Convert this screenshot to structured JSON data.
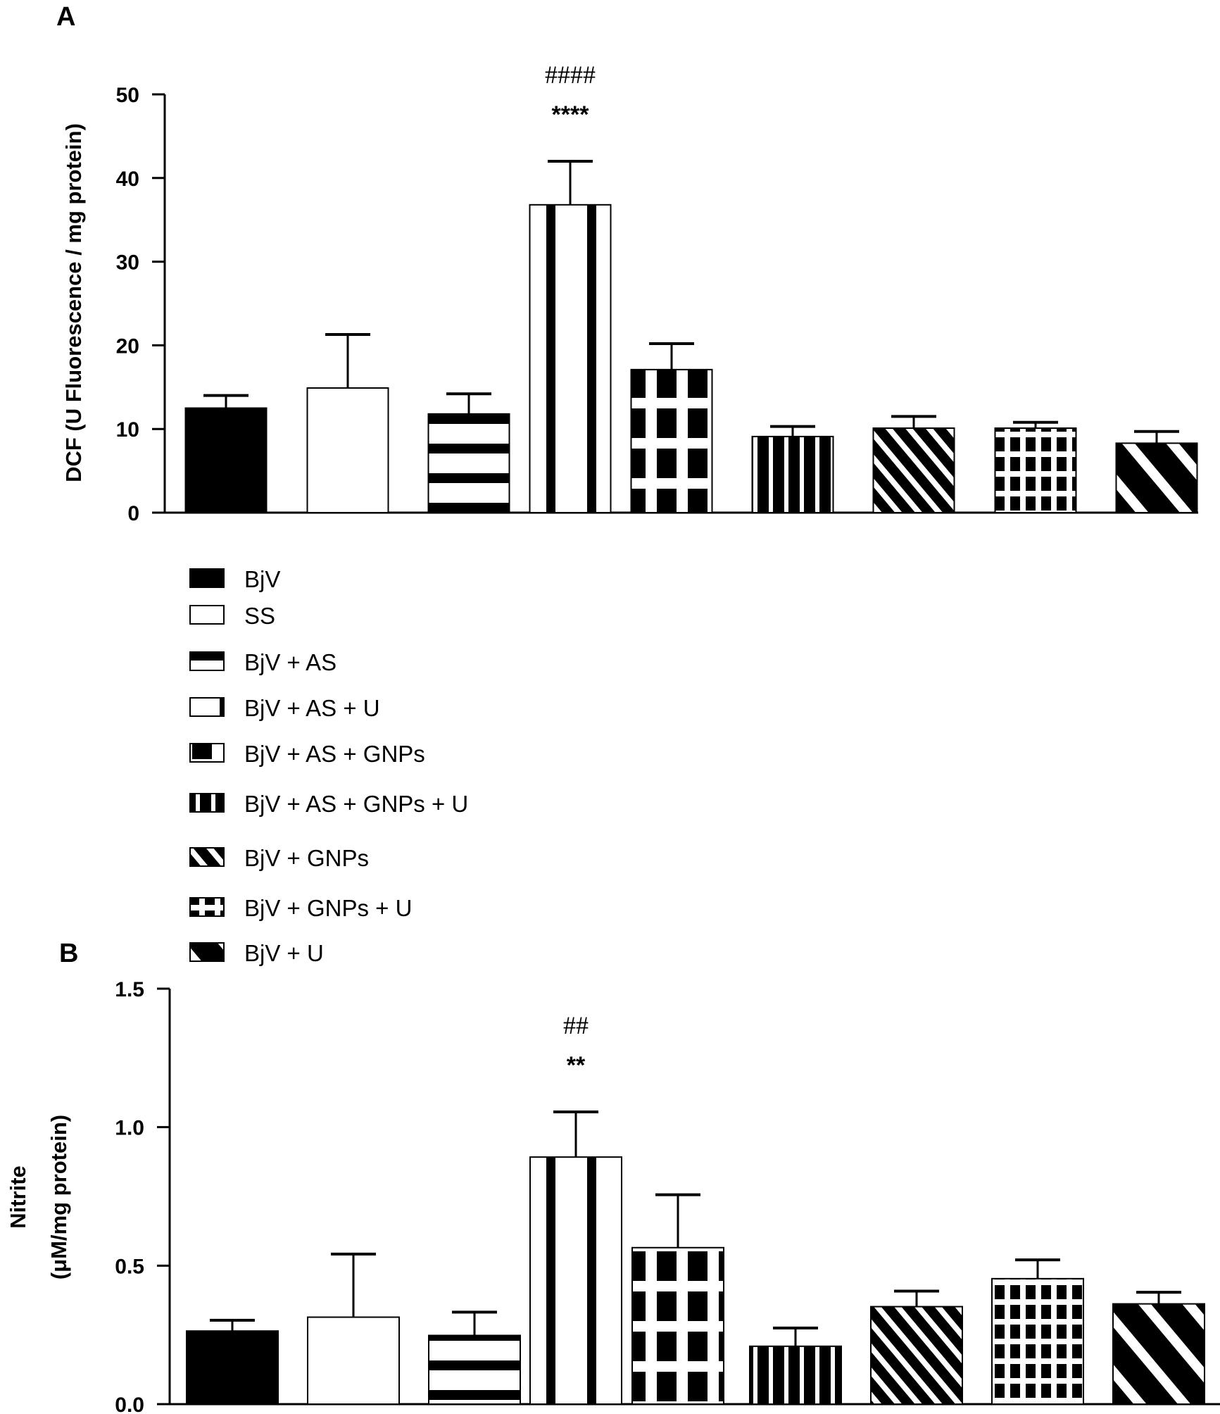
{
  "figure": {
    "legend": {
      "placement": "between-panels-left",
      "items": [
        {
          "label": "BjV",
          "pattern": "solid-black"
        },
        {
          "label": "SS",
          "pattern": "solid-white"
        },
        {
          "label": "BjV + AS",
          "pattern": "horizontal-stripes"
        },
        {
          "label": "BjV + AS + U",
          "pattern": "vertical-stripes-wide"
        },
        {
          "label": "BjV + AS + GNPs",
          "pattern": "grid-large"
        },
        {
          "label": "BjV + AS + GNPs + U",
          "pattern": "vertical-stripes-dense"
        },
        {
          "label": "BjV + GNPs",
          "pattern": "diagonal-fine"
        },
        {
          "label": "BjV + GNPs + U",
          "pattern": "grid-small"
        },
        {
          "label": "BjV + U",
          "pattern": "diagonal-wide"
        }
      ]
    }
  },
  "chart_data": [
    {
      "panel": "A",
      "type": "bar",
      "title": "",
      "xlabel": "",
      "ylabel": "DCF  (U Fluorescence / mg protein)",
      "ylim": [
        0,
        50
      ],
      "yticks": [
        "0",
        "10",
        "20",
        "30",
        "40",
        "50"
      ],
      "ytick_values": [
        0,
        10,
        20,
        30,
        40,
        50
      ],
      "grid": false,
      "categories": [
        "BjV",
        "SS",
        "BjV + AS",
        "BjV + AS + U",
        "BjV + AS + GNPs",
        "BjV + AS + GNPs + U",
        "BjV + GNPs",
        "BjV + GNPs + U",
        "BjV + U"
      ],
      "values": [
        12.5,
        14.9,
        11.8,
        36.8,
        17.1,
        9.1,
        10.1,
        10.1,
        8.3
      ],
      "error_upper": [
        14.0,
        21.3,
        14.2,
        42.0,
        20.2,
        10.3,
        11.5,
        10.8,
        9.7
      ],
      "annotations": [
        {
          "category_index": 3,
          "lines": [
            "####",
            "****"
          ]
        }
      ]
    },
    {
      "panel": "B",
      "type": "bar",
      "title": "",
      "xlabel": "",
      "ylabel": "Nitrite",
      "ylabel2": "(μM/mg protein)",
      "ylim": [
        0,
        1.5
      ],
      "yticks": [
        "0.0",
        "0.5",
        "1.0",
        "1.5"
      ],
      "ytick_values": [
        0,
        0.5,
        1.0,
        1.5
      ],
      "grid": false,
      "categories": [
        "BjV",
        "SS",
        "BjV + AS",
        "BjV + AS + U",
        "BjV + AS + GNPs",
        "BjV + AS + GNPs + U",
        "BjV + GNPs",
        "BjV + GNPs + U",
        "BjV + U"
      ],
      "values": [
        0.264,
        0.314,
        0.248,
        0.892,
        0.565,
        0.209,
        0.352,
        0.453,
        0.362
      ],
      "error_upper": [
        0.303,
        0.542,
        0.332,
        1.055,
        0.756,
        0.275,
        0.408,
        0.521,
        0.404
      ],
      "annotations": [
        {
          "category_index": 3,
          "lines": [
            "##",
            "**"
          ]
        }
      ]
    }
  ]
}
